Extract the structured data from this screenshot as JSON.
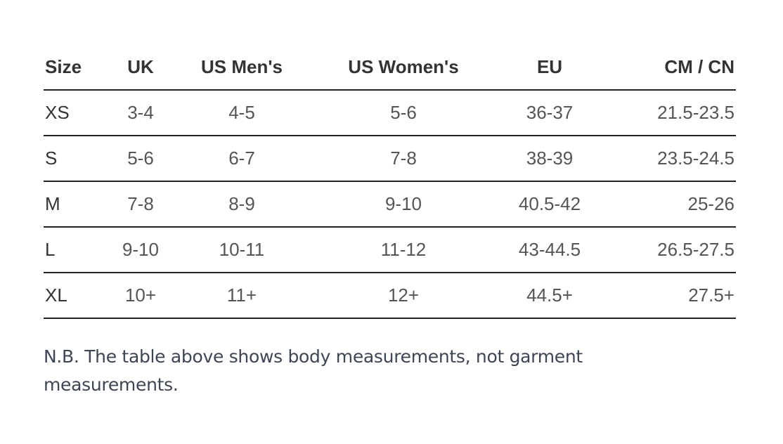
{
  "size_chart": {
    "headers": [
      "Size",
      "UK",
      "US Men's",
      "US Women's",
      "EU",
      "CM / CN"
    ],
    "rows": [
      [
        "XS",
        "3-4",
        "4-5",
        "5-6",
        "36-37",
        "21.5-23.5"
      ],
      [
        "S",
        "5-6",
        "6-7",
        "7-8",
        "38-39",
        "23.5-24.5"
      ],
      [
        "M",
        "7-8",
        "8-9",
        "9-10",
        "40.5-42",
        "25-26"
      ],
      [
        "L",
        "9-10",
        "10-11",
        "11-12",
        "43-44.5",
        "26.5-27.5"
      ],
      [
        "XL",
        "10+",
        "11+",
        "12+",
        "44.5+",
        "27.5+"
      ]
    ]
  },
  "note": "N.B. The table above shows body measurements, not garment measurements."
}
